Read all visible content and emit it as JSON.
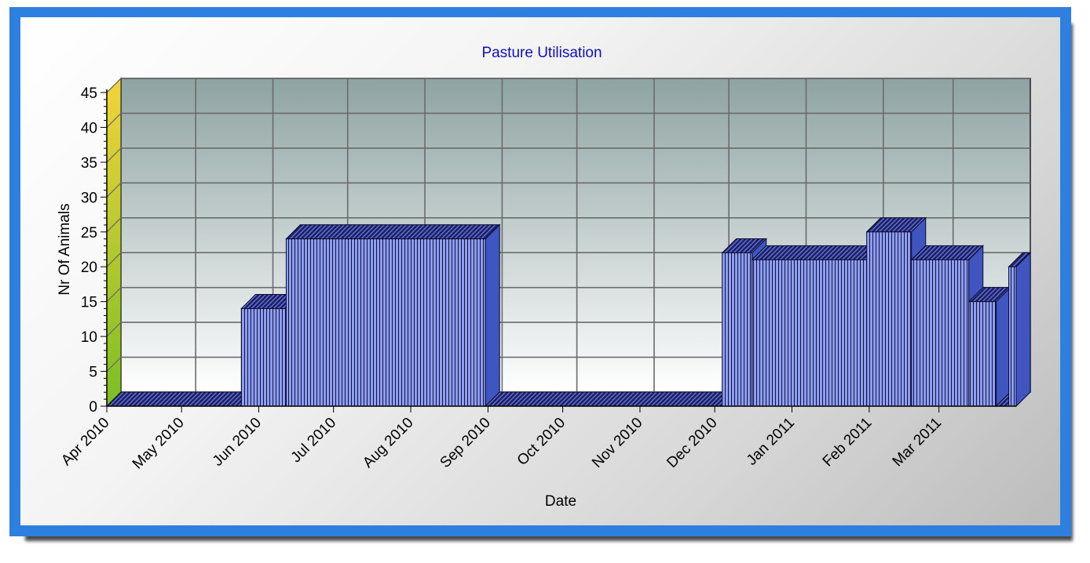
{
  "colors": {
    "frame": "#2d7fe0",
    "title": "#1010c0",
    "bar_front": "#8e9df0",
    "bar_top": "#1a1f6a",
    "bar_side": "#3f55c0",
    "plot_top": "#8ea3a2",
    "plot_bottom": "#ffffff",
    "wall_top": "#f2d43a",
    "wall_bottom": "#7bbf22"
  },
  "chart_data": {
    "type": "bar",
    "title": "Pasture Utilisation",
    "xlabel": "Date",
    "ylabel": "Nr Of Animals",
    "ylim": [
      0,
      45
    ],
    "yticks": [
      0,
      5,
      10,
      15,
      20,
      25,
      30,
      35,
      40,
      45
    ],
    "grid": true,
    "style": "3d",
    "x_tick_labels": [
      "Apr 2010",
      "May 2010",
      "Jun 2010",
      "Jul 2010",
      "Aug 2010",
      "Sep 2010",
      "Oct 2010",
      "Nov 2010",
      "Dec 2010",
      "Jan 2011",
      "Feb 2011",
      "Mar 2011"
    ],
    "x_range": [
      "2010-04-01",
      "2011-04-01"
    ],
    "segments": [
      {
        "start": "2010-04-01",
        "end": "2010-05-25",
        "value": 0
      },
      {
        "start": "2010-05-25",
        "end": "2010-06-12",
        "value": 14
      },
      {
        "start": "2010-06-12",
        "end": "2010-08-31",
        "value": 24
      },
      {
        "start": "2010-08-31",
        "end": "2010-12-04",
        "value": 0
      },
      {
        "start": "2010-12-04",
        "end": "2010-12-16",
        "value": 22
      },
      {
        "start": "2010-12-16",
        "end": "2011-01-31",
        "value": 21
      },
      {
        "start": "2011-01-31",
        "end": "2011-02-18",
        "value": 25
      },
      {
        "start": "2011-02-18",
        "end": "2011-03-13",
        "value": 21
      },
      {
        "start": "2011-03-13",
        "end": "2011-03-24",
        "value": 15
      },
      {
        "start": "2011-03-24",
        "end": "2011-03-29",
        "value": 0
      },
      {
        "start": "2011-03-29",
        "end": "2011-04-01",
        "value": 20
      }
    ]
  }
}
